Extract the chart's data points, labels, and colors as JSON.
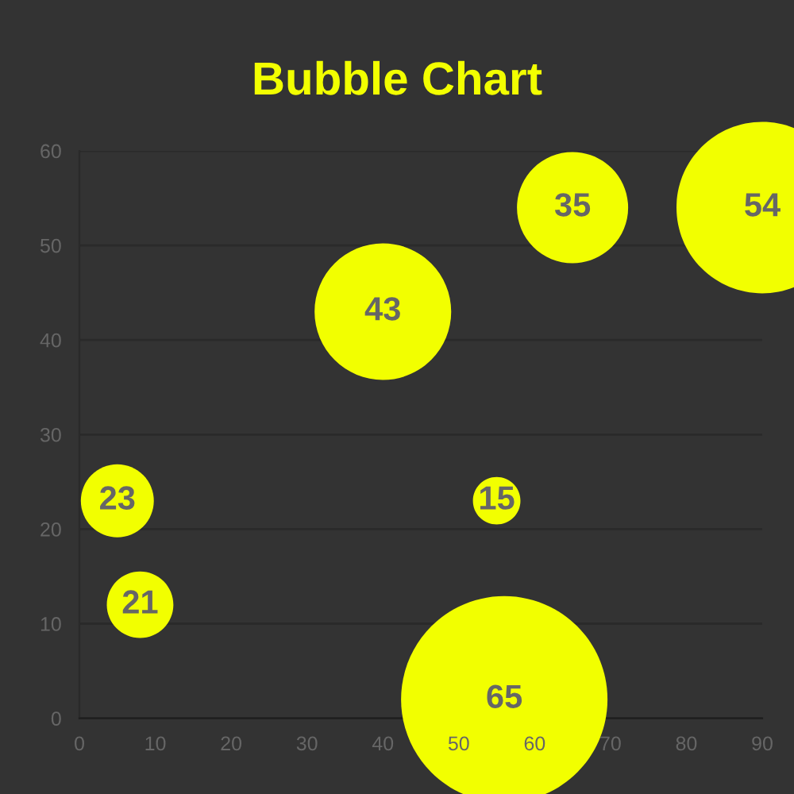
{
  "chart_data": {
    "type": "bubble",
    "title": "Bubble Chart",
    "x": [
      5,
      8,
      40,
      55,
      56,
      65,
      90
    ],
    "values": [
      23,
      12,
      43,
      23,
      2,
      54,
      54
    ],
    "sizes": [
      0.125,
      0.104,
      0.438,
      0.053,
      1,
      0.29,
      0.69
    ],
    "color": "#f2ff00",
    "annotations": [
      {
        "text": "23",
        "x": 5,
        "y": 23
      },
      {
        "text": "21",
        "x": 8,
        "y": 12
      },
      {
        "text": "43",
        "x": 40,
        "y": 43
      },
      {
        "text": "15",
        "x": 55,
        "y": 23
      },
      {
        "text": "65",
        "x": 56,
        "y": 2
      },
      {
        "text": "35",
        "x": 65,
        "y": 54
      },
      {
        "text": "54",
        "x": 90,
        "y": 54
      }
    ],
    "xlim": [
      0,
      90
    ],
    "xticks": [
      0,
      10,
      20,
      30,
      40,
      50,
      60,
      70,
      80,
      90
    ],
    "ylim": [
      0,
      60
    ],
    "yticks": [
      0,
      10,
      20,
      30,
      40,
      50,
      60
    ],
    "grid": "y"
  }
}
